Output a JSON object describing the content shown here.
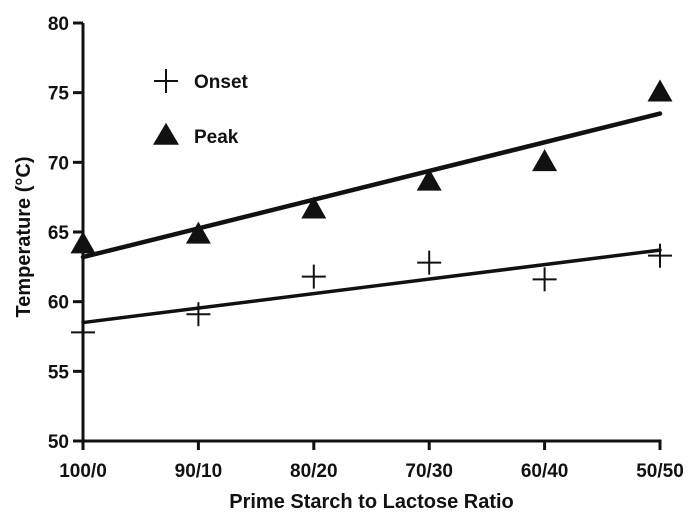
{
  "chart_data": {
    "type": "scatter",
    "title": "",
    "xlabel": "Prime Starch to Lactose Ratio",
    "ylabel": "Temperature (°C)",
    "categories": [
      "100/0",
      "90/10",
      "80/20",
      "70/30",
      "60/40",
      "50/50"
    ],
    "ylim": [
      50,
      80
    ],
    "yticks": [
      50,
      55,
      60,
      65,
      70,
      75,
      80
    ],
    "grid": false,
    "legend_position": "top-left",
    "series": [
      {
        "name": "Onset",
        "marker": "plus",
        "values": [
          57.8,
          59.1,
          61.8,
          62.8,
          61.6,
          63.3
        ],
        "trendline": {
          "start": 58.5,
          "end": 63.7
        }
      },
      {
        "name": "Peak",
        "marker": "triangle",
        "values": [
          64.1,
          64.8,
          66.6,
          68.6,
          70.0,
          75.0
        ],
        "trendline": {
          "start": 63.2,
          "end": 73.5
        }
      }
    ],
    "colors": {
      "ink": "#111111",
      "background": "#ffffff"
    }
  }
}
